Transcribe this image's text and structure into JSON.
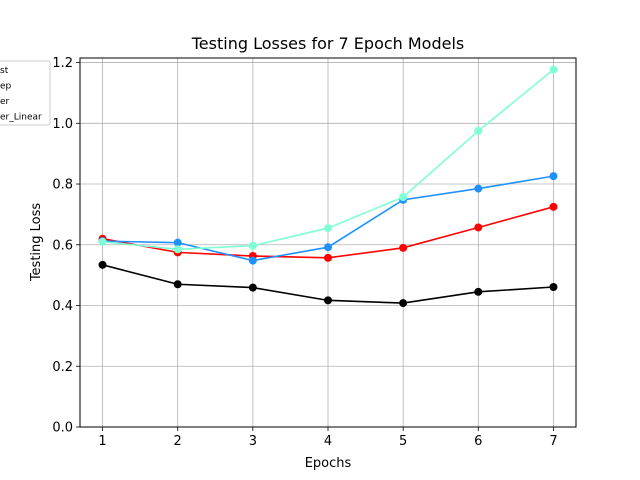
{
  "chart_data": {
    "type": "line",
    "title": "Testing Losses for 7 Epoch Models",
    "xlabel": "Epochs",
    "ylabel": "Testing Loss",
    "x": [
      1,
      2,
      3,
      4,
      5,
      6,
      7
    ],
    "xticks": [
      "1",
      "2",
      "3",
      "4",
      "5",
      "6",
      "7"
    ],
    "yticks": [
      "0.0",
      "0.2",
      "0.4",
      "0.6",
      "0.8",
      "1.0",
      "1.2"
    ],
    "xlim": [
      0.7,
      7.3
    ],
    "ylim": [
      0.0,
      1.215
    ],
    "grid": true,
    "legend_position": "upper-left (partially clipped)",
    "series": [
      {
        "name": "st",
        "color": "#ff0000",
        "values": [
          0.62,
          0.575,
          0.563,
          0.557,
          0.59,
          0.657,
          0.725
        ]
      },
      {
        "name": "ep",
        "color": "#000000",
        "values": [
          0.534,
          0.47,
          0.459,
          0.417,
          0.408,
          0.445,
          0.461
        ]
      },
      {
        "name": "er",
        "color": "#1e90ff",
        "values": [
          0.612,
          0.607,
          0.548,
          0.592,
          0.748,
          0.785,
          0.826
        ]
      },
      {
        "name": "er_Linear",
        "color": "#7fffd4",
        "values": [
          0.61,
          0.585,
          0.597,
          0.655,
          0.757,
          0.975,
          1.177
        ]
      }
    ]
  }
}
